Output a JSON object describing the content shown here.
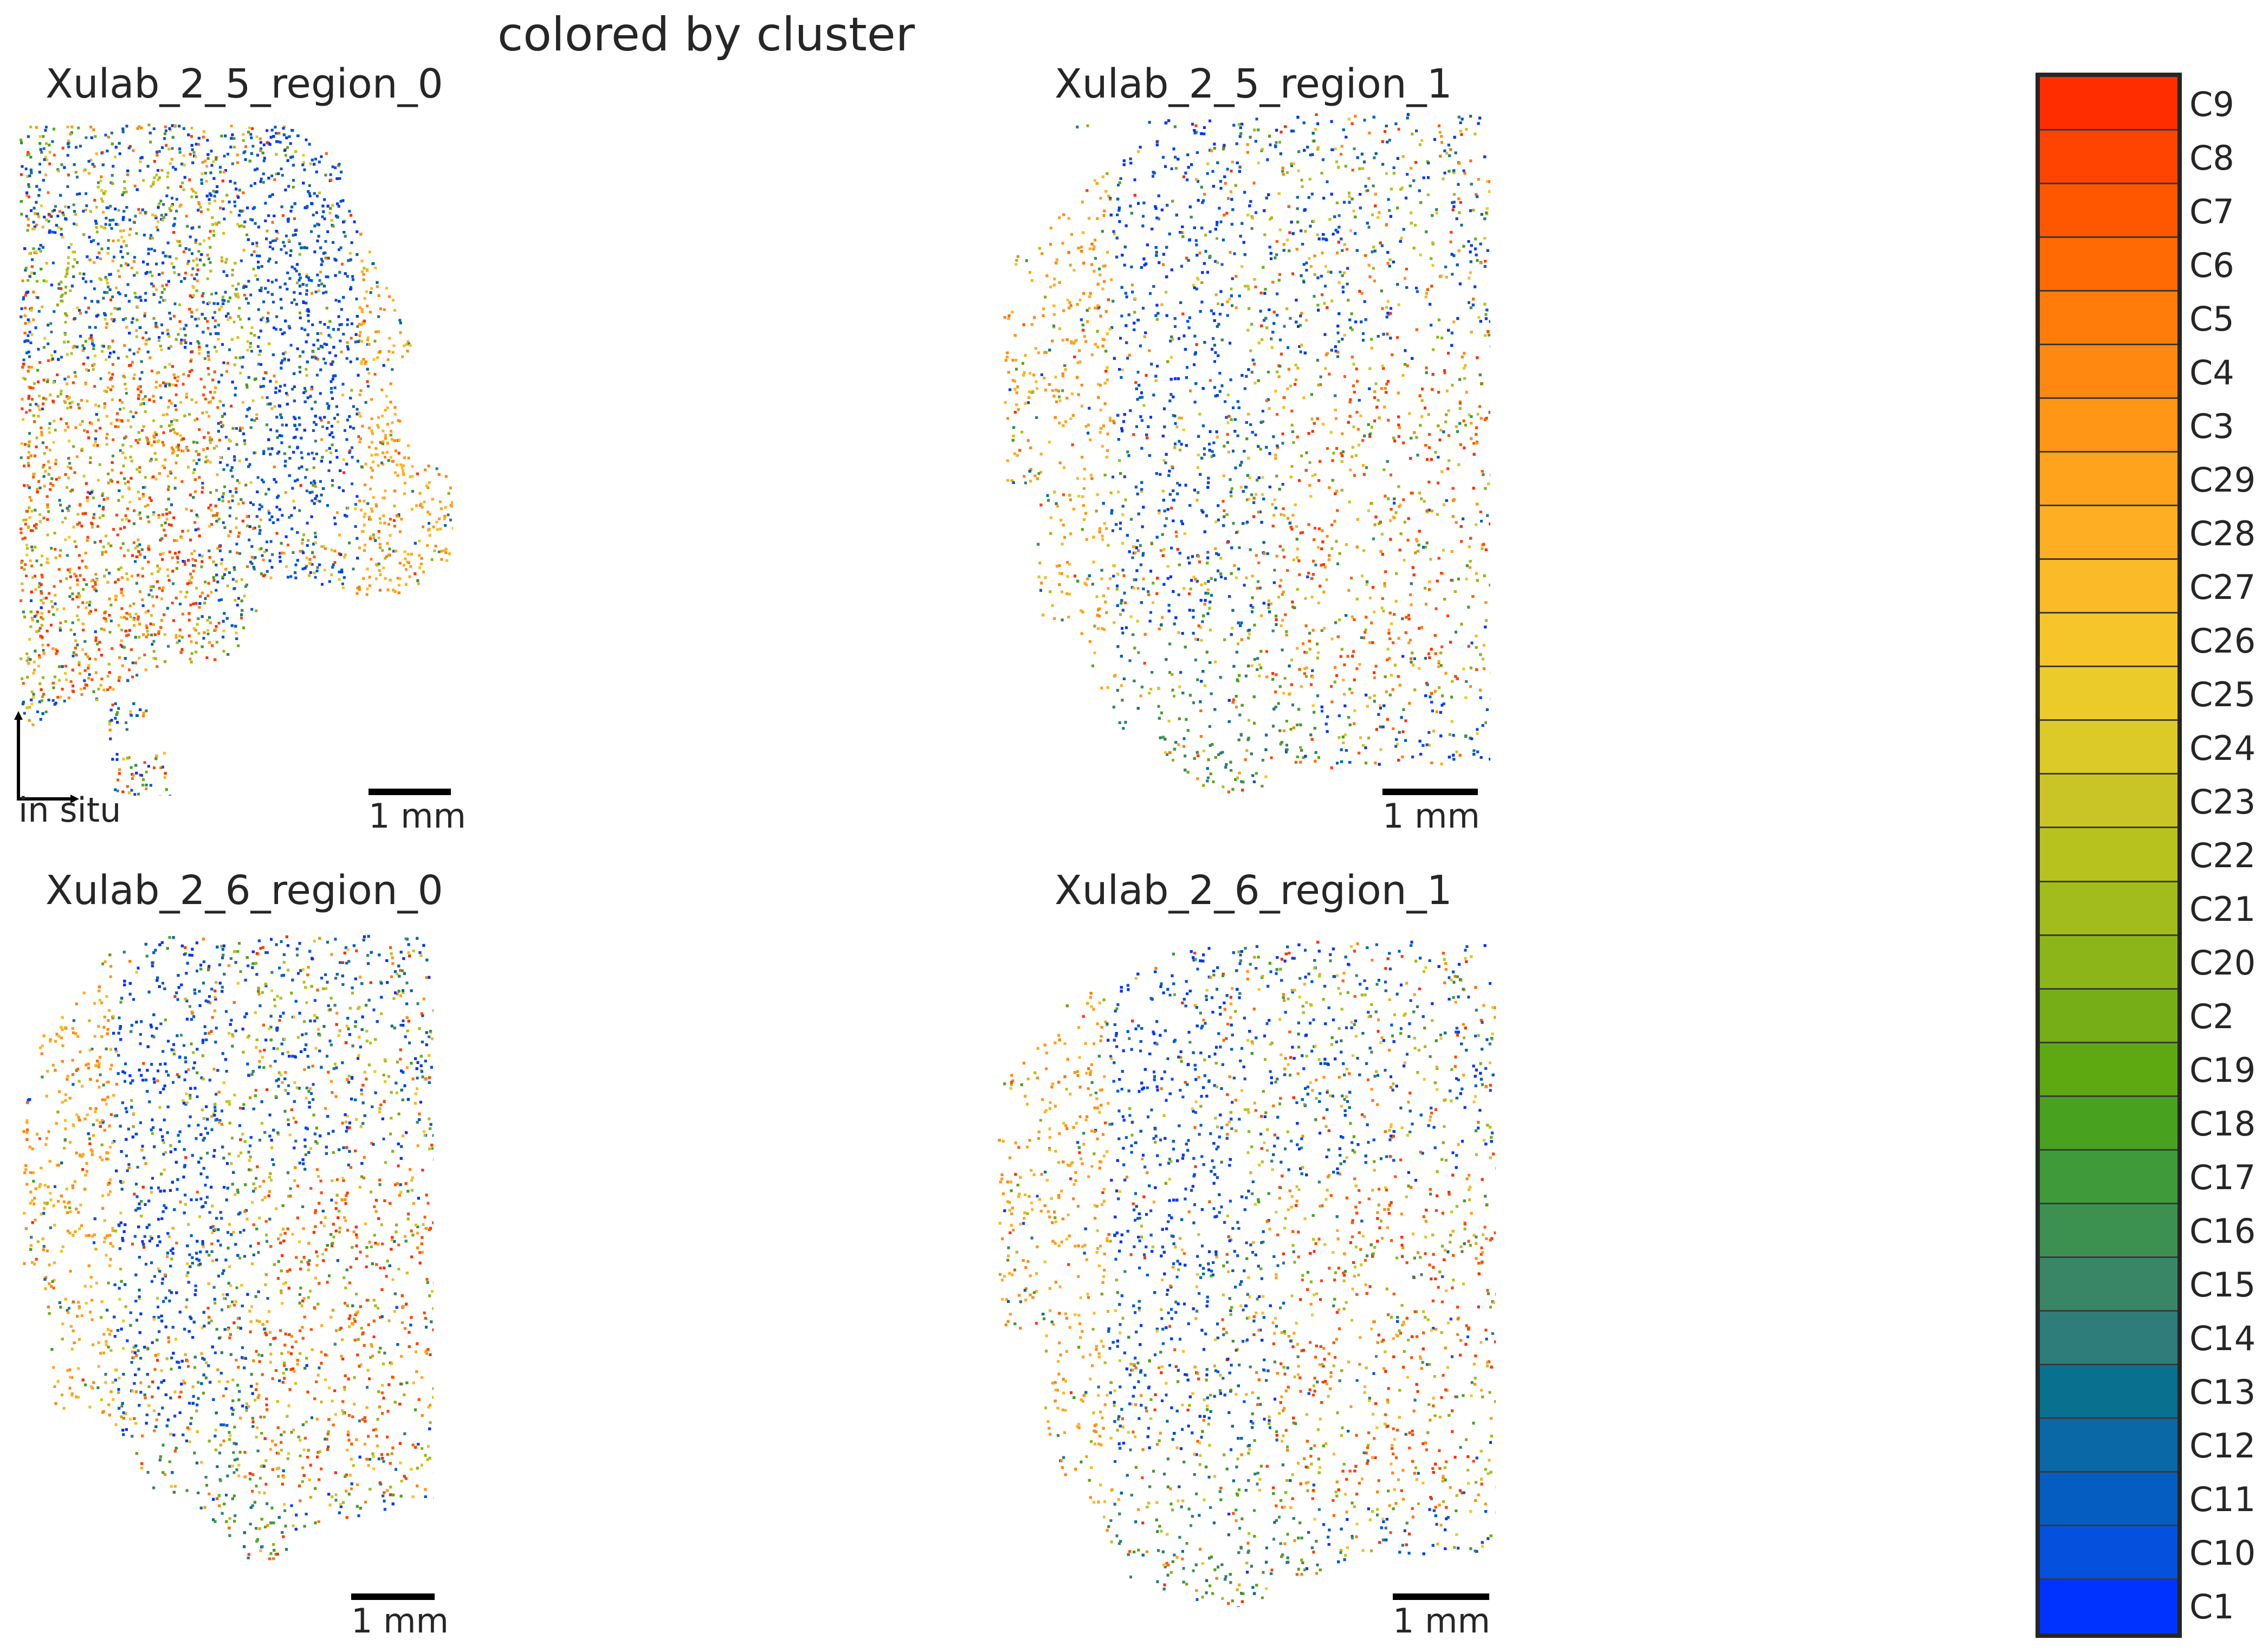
{
  "chart_data": {
    "type": "scatter",
    "title": "colored by cluster",
    "panels": [
      {
        "title": "Xulab_2_5_region_0",
        "scale_label": "1 mm",
        "orientation_label": "in situ"
      },
      {
        "title": "Xulab_2_5_region_1",
        "scale_label": "1 mm"
      },
      {
        "title": "Xulab_2_6_region_0",
        "scale_label": "1 mm"
      },
      {
        "title": "Xulab_2_6_region_1",
        "scale_label": "1 mm"
      }
    ],
    "legend": {
      "placement": "right",
      "entries": [
        {
          "label": "C9",
          "color": "#ff2d00"
        },
        {
          "label": "C8",
          "color": "#ff4300"
        },
        {
          "label": "C7",
          "color": "#ff5700"
        },
        {
          "label": "C6",
          "color": "#ff6a05"
        },
        {
          "label": "C5",
          "color": "#ff7b0a"
        },
        {
          "label": "C4",
          "color": "#ff8811"
        },
        {
          "label": "C3",
          "color": "#ff9616"
        },
        {
          "label": "C29",
          "color": "#ffa21c"
        },
        {
          "label": "C28",
          "color": "#feae22"
        },
        {
          "label": "C27",
          "color": "#fbba27"
        },
        {
          "label": "C26",
          "color": "#f6c52a"
        },
        {
          "label": "C25",
          "color": "#ebcb2a"
        },
        {
          "label": "C24",
          "color": "#dbca28"
        },
        {
          "label": "C23",
          "color": "#cac526"
        },
        {
          "label": "C22",
          "color": "#b7c21f"
        },
        {
          "label": "C21",
          "color": "#a2bb1d"
        },
        {
          "label": "C20",
          "color": "#8cb51a"
        },
        {
          "label": "C2",
          "color": "#75ae16"
        },
        {
          "label": "C19",
          "color": "#5ea912"
        },
        {
          "label": "C18",
          "color": "#48a11f"
        },
        {
          "label": "C17",
          "color": "#3f9a3a"
        },
        {
          "label": "C16",
          "color": "#3c9150"
        },
        {
          "label": "C15",
          "color": "#388666"
        },
        {
          "label": "C14",
          "color": "#2e7d7b"
        },
        {
          "label": "C13",
          "color": "#09718f"
        },
        {
          "label": "C12",
          "color": "#0a68a6"
        },
        {
          "label": "C11",
          "color": "#055dc2"
        },
        {
          "label": "C10",
          "color": "#0551de"
        },
        {
          "label": "C1",
          "color": "#0033ff"
        }
      ]
    }
  }
}
